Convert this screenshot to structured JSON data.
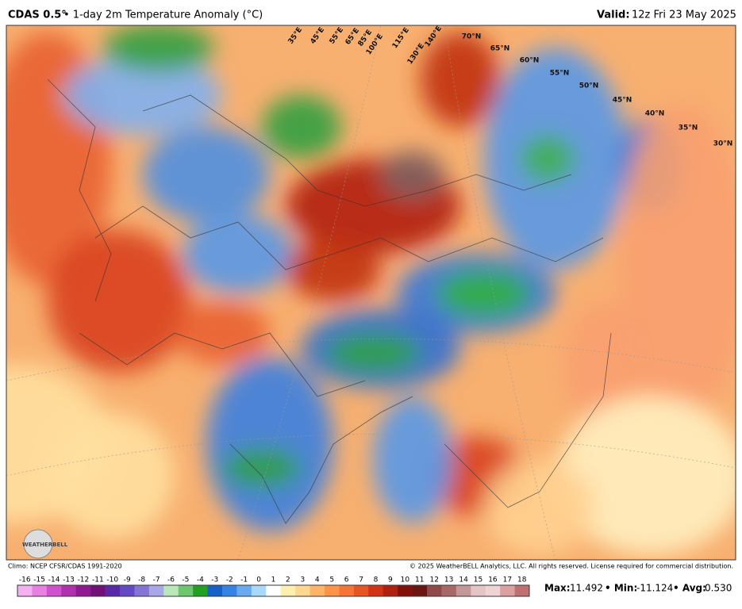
{
  "header": {
    "product": "CDAS 0.5°",
    "title": "• 1-day 2m Temperature Anomaly (°C)",
    "valid_label": "Valid:",
    "valid_time": "12z Fri 23 May 2025"
  },
  "map": {
    "lat_labels": [
      "70°N",
      "65°N",
      "60°N",
      "55°N",
      "50°N",
      "45°N",
      "40°N",
      "35°N",
      "30°N"
    ],
    "lon_labels": [
      "35°E",
      "45°E",
      "55°E",
      "65°E",
      "85°E",
      "100°E",
      "115°E",
      "130°E",
      "140°E"
    ],
    "logo": "WEATHERBELL"
  },
  "footer": {
    "climo": "Climo: NCEP CFSR/CDAS 1991-2020",
    "copyright": "© 2025 WeatherBELL Analytics, LLC. All rights reserved. License required for commercial distribution."
  },
  "colorbar": {
    "labels": [
      -16,
      -15,
      -14,
      -13,
      -12,
      -11,
      -10,
      -9,
      -8,
      -7,
      -6,
      -5,
      -4,
      -3,
      -2,
      -1,
      0,
      1,
      2,
      3,
      4,
      5,
      6,
      7,
      8,
      9,
      10,
      11,
      12,
      13,
      14,
      15,
      16,
      17,
      18
    ],
    "colors": [
      "#f4b0f0",
      "#e880e4",
      "#d050d0",
      "#b030b0",
      "#901890",
      "#701078",
      "#5828a8",
      "#6448c4",
      "#8474d4",
      "#a8a8e8",
      "#b8e8b8",
      "#6cc86c",
      "#22a022",
      "#1860c8",
      "#3484e4",
      "#68aaf0",
      "#a8d8fa",
      "#ffffff",
      "#fff0b0",
      "#ffd890",
      "#ffb468",
      "#ff9448",
      "#f87434",
      "#e85424",
      "#d03414",
      "#b02010",
      "#801008",
      "#6c1410",
      "#904848",
      "#a86868",
      "#c49898",
      "#e4c4c4",
      "#f0d4d4",
      "#dca0a0",
      "#c07070"
    ]
  },
  "stats": {
    "max_label": "Max:",
    "max": 11.492,
    "min_label": "• Min:",
    "min": -11.124,
    "avg_label": "• Avg:",
    "avg": {
      "value": 0.53,
      "label": "0.530"
    }
  }
}
